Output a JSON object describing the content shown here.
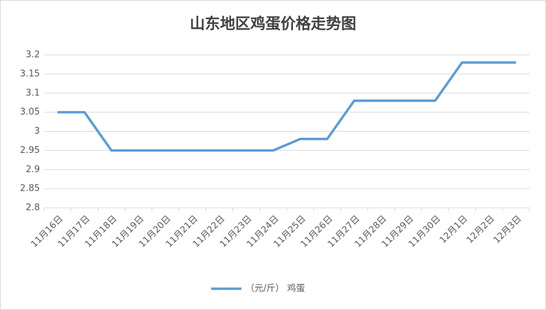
{
  "chart_data": {
    "type": "line",
    "title": "山东地区鸡蛋价格走势图",
    "categories": [
      "11月16日",
      "11月17日",
      "11月18日",
      "11月19日",
      "11月20日",
      "11月21日",
      "11月22日",
      "11月23日",
      "11月24日",
      "11月25日",
      "11月26日",
      "11月27日",
      "11月28日",
      "11月29日",
      "11月30日",
      "12月1日",
      "12月2日",
      "12月3日"
    ],
    "series": [
      {
        "name": "（元/斤） 鸡蛋",
        "color": "#5b9bd5",
        "values": [
          3.05,
          3.05,
          2.95,
          2.95,
          2.95,
          2.95,
          2.95,
          2.95,
          2.95,
          2.98,
          2.98,
          3.08,
          3.08,
          3.08,
          3.08,
          3.18,
          3.18,
          3.18
        ]
      }
    ],
    "ylim": [
      2.8,
      3.2
    ],
    "yticks": [
      2.8,
      2.85,
      2.9,
      2.95,
      3,
      3.05,
      3.1,
      3.15,
      3.2
    ],
    "grid": true,
    "legend": "bottom"
  }
}
